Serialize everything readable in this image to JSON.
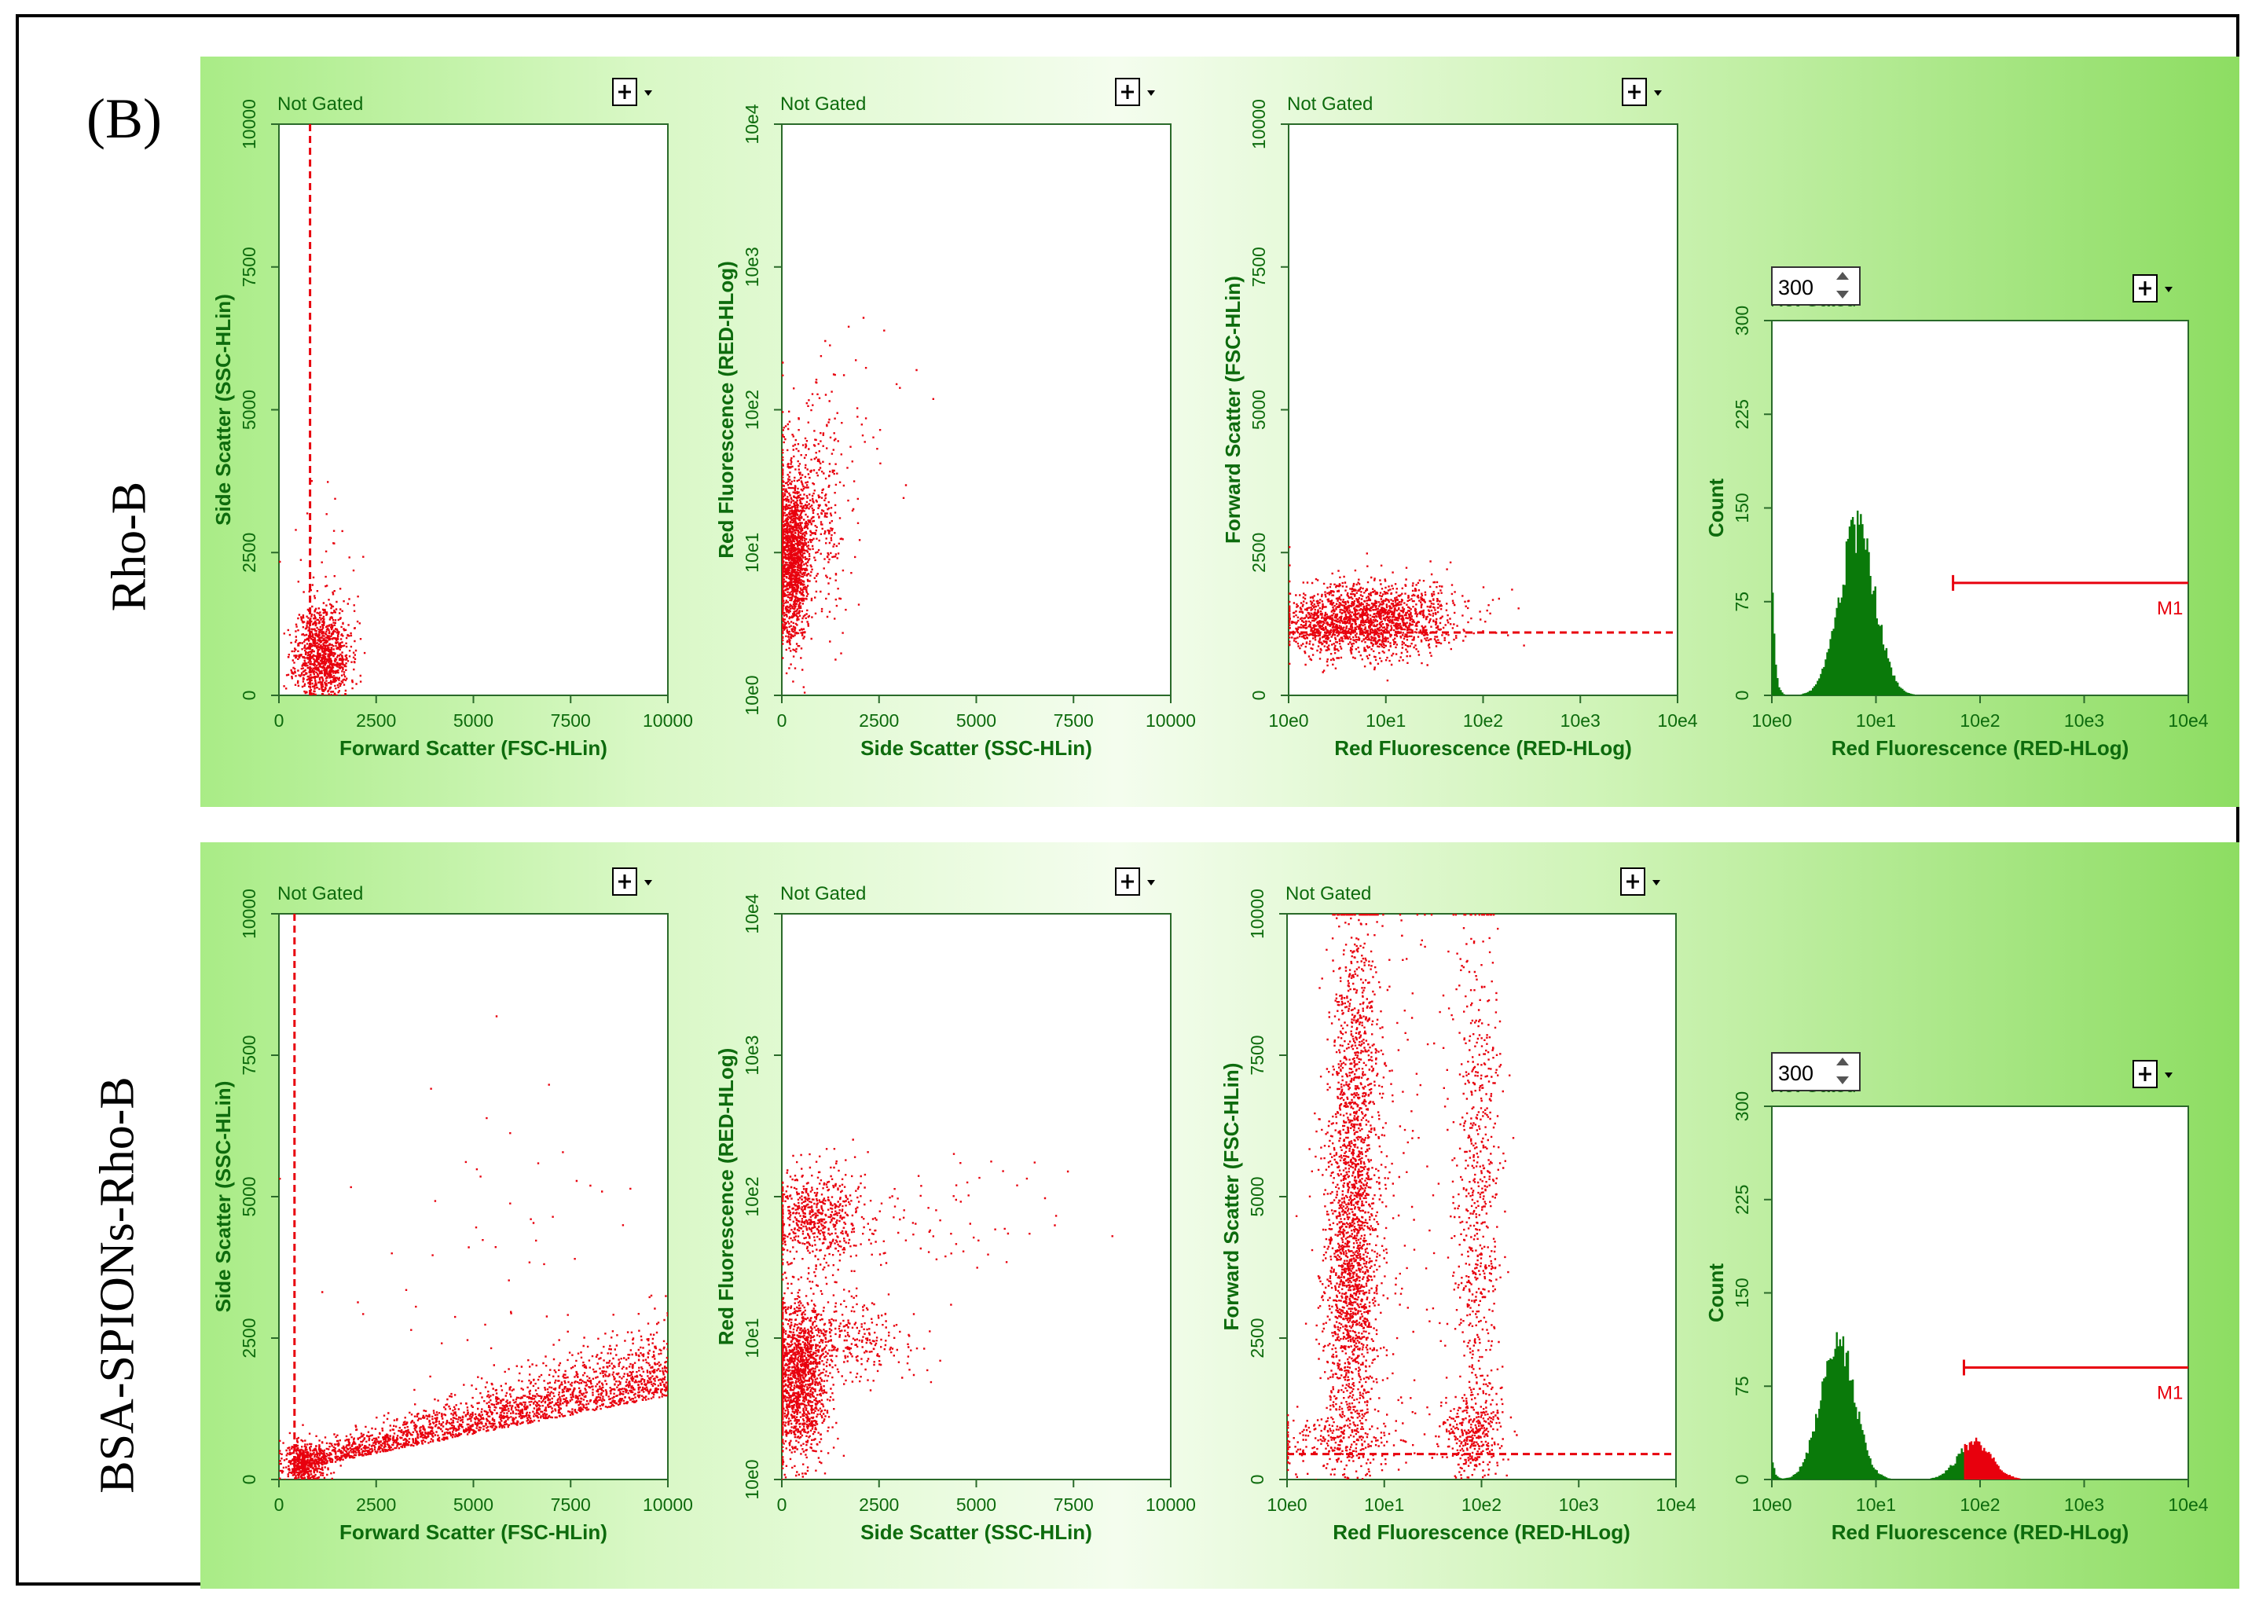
{
  "figure": {
    "panel_label": "(B)",
    "rows": [
      "Rho-B",
      "BSA-SPIONs-Rho-B"
    ]
  },
  "colors": {
    "dots": "#e8000d",
    "axis_text": "#0d6b0d",
    "hist_fill": "#0a7a0a",
    "hist_marker": "#e8000d",
    "band_start": "#a9ec86",
    "band_end": "#8ddd62"
  },
  "chart_data": [
    {
      "id": "r1p1",
      "type": "scatter",
      "title": "Not Gated",
      "menu_icon": "plus-icon",
      "xlabel": "Forward Scatter (FSC-HLin)",
      "ylabel": "Side Scatter (SSC-HLin)",
      "xscale": "linear",
      "yscale": "linear",
      "xlim": [
        0,
        10000
      ],
      "ylim": [
        0,
        10000
      ],
      "xticks": [
        "0",
        "2500",
        "5000",
        "7500",
        "10000"
      ],
      "xtick_values": [
        0,
        2500,
        5000,
        7500,
        10000
      ],
      "yticks": [
        "0",
        "2500",
        "5000",
        "7500",
        "10000"
      ],
      "ytick_values": [
        0,
        2500,
        5000,
        7500,
        10000
      ],
      "gate_vertical": 800,
      "clusters": [
        {
          "n": 1100,
          "cx": 1100,
          "cy": 700,
          "sx": 350,
          "sy": 450,
          "seed": 11
        },
        {
          "n": 40,
          "cx": 1500,
          "cy": 2000,
          "sx": 600,
          "sy": 900,
          "seed": 12
        }
      ]
    },
    {
      "id": "r1p2",
      "type": "scatter",
      "title": "Not Gated",
      "menu_icon": "plus-icon",
      "xlabel": "Side Scatter (SSC-HLin)",
      "ylabel": "Red Fluorescence (RED-HLog)",
      "xscale": "linear",
      "yscale": "log",
      "xlim": [
        0,
        10000
      ],
      "ylim": [
        1,
        10000
      ],
      "xticks": [
        "0",
        "2500",
        "5000",
        "7500",
        "10000"
      ],
      "xtick_values": [
        0,
        2500,
        5000,
        7500,
        10000
      ],
      "yticks": [
        "10e0",
        "10e1",
        "10e2",
        "10e3",
        "10e4"
      ],
      "ytick_values": [
        1,
        10,
        100,
        1000,
        10000
      ],
      "clusters": [
        {
          "n": 1400,
          "cx": 250,
          "cy": 0.95,
          "sx": 220,
          "sy": 0.3,
          "seed": 21
        },
        {
          "n": 450,
          "cx": 700,
          "cy": 1.25,
          "sx": 500,
          "sy": 0.35,
          "seed": 22
        },
        {
          "n": 50,
          "cx": 1800,
          "cy": 1.9,
          "sx": 900,
          "sy": 0.3,
          "seed": 23
        }
      ]
    },
    {
      "id": "r1p3",
      "type": "scatter",
      "title": "Not Gated",
      "menu_icon": "plus-icon",
      "xlabel": "Red Fluorescence (RED-HLog)",
      "ylabel": "Forward Scatter (FSC-HLin)",
      "xscale": "log",
      "yscale": "linear",
      "xlim": [
        1,
        10000
      ],
      "ylim": [
        0,
        10000
      ],
      "xticks": [
        "10e0",
        "10e1",
        "10e2",
        "10e3",
        "10e4"
      ],
      "xtick_values": [
        1,
        10,
        100,
        1000,
        10000
      ],
      "yticks": [
        "0",
        "2500",
        "5000",
        "7500",
        "10000"
      ],
      "ytick_values": [
        0,
        2500,
        5000,
        7500,
        10000
      ],
      "gate_horizontal": 1100,
      "clusters": [
        {
          "n": 1500,
          "cx": 0.85,
          "cy": 1350,
          "sx": 0.38,
          "sy": 320,
          "seed": 31
        },
        {
          "n": 300,
          "cx": 0.3,
          "cy": 1250,
          "sx": 0.2,
          "sy": 250,
          "seed": 32
        },
        {
          "n": 60,
          "cx": 1.6,
          "cy": 1400,
          "sx": 0.35,
          "sy": 300,
          "seed": 33
        }
      ]
    },
    {
      "id": "r1p4",
      "type": "histogram",
      "title": "Not Gated",
      "menu_icon": "plus-icon",
      "count_box": "300",
      "xlabel": "Red Fluorescence (RED-HLog)",
      "ylabel": "Count",
      "xscale": "log",
      "yscale": "linear",
      "xlim": [
        1,
        10000
      ],
      "ylim": [
        0,
        300
      ],
      "xticks": [
        "10e0",
        "10e1",
        "10e2",
        "10e3",
        "10e4"
      ],
      "xtick_values": [
        1,
        10,
        100,
        1000,
        10000
      ],
      "yticks": [
        "0",
        "75",
        "150",
        "225",
        "300"
      ],
      "ytick_values": [
        0,
        75,
        150,
        225,
        300
      ],
      "edge_peak": {
        "x": 1,
        "count": 120
      },
      "peaks": [
        {
          "center_decade": 0.82,
          "width_decade": 0.17,
          "height": 130
        }
      ],
      "marker": {
        "label": "M1",
        "start": 55,
        "end": 10000,
        "level": 90
      }
    },
    {
      "id": "r2p1",
      "type": "scatter",
      "title": "Not Gated",
      "menu_icon": "plus-icon",
      "xlabel": "Forward Scatter (FSC-HLin)",
      "ylabel": "Side Scatter (SSC-HLin)",
      "xscale": "linear",
      "yscale": "linear",
      "xlim": [
        0,
        10000
      ],
      "ylim": [
        0,
        10000
      ],
      "xticks": [
        "0",
        "2500",
        "5000",
        "7500",
        "10000"
      ],
      "xtick_values": [
        0,
        2500,
        5000,
        7500,
        10000
      ],
      "yticks": [
        "0",
        "2500",
        "5000",
        "7500",
        "10000"
      ],
      "ytick_values": [
        0,
        2500,
        5000,
        7500,
        10000
      ],
      "gate_vertical": 400,
      "clusters": [
        {
          "n": 2200,
          "trend": true,
          "x0": 400,
          "x1": 10000,
          "y0": 200,
          "y1": 1500,
          "spread": 450,
          "seed": 41
        },
        {
          "n": 500,
          "cx": 650,
          "cy": 250,
          "sx": 300,
          "sy": 250,
          "seed": 42
        },
        {
          "n": 60,
          "cx": 5000,
          "cy": 4000,
          "sx": 2500,
          "sy": 1800,
          "seed": 43
        }
      ]
    },
    {
      "id": "r2p2",
      "type": "scatter",
      "title": "Not Gated",
      "menu_icon": "plus-icon",
      "xlabel": "Side Scatter (SSC-HLin)",
      "ylabel": "Red Fluorescence (RED-HLog)",
      "xscale": "linear",
      "yscale": "log",
      "xlim": [
        0,
        10000
      ],
      "ylim": [
        1,
        10000
      ],
      "xticks": [
        "0",
        "2500",
        "5000",
        "7500",
        "10000"
      ],
      "xtick_values": [
        0,
        2500,
        5000,
        7500,
        10000
      ],
      "yticks": [
        "10e0",
        "10e1",
        "10e2",
        "10e3",
        "10e4"
      ],
      "ytick_values": [
        1,
        10,
        100,
        1000,
        10000
      ],
      "clusters": [
        {
          "n": 1500,
          "cx": 400,
          "cy": 0.7,
          "sx": 380,
          "sy": 0.28,
          "seed": 51
        },
        {
          "n": 350,
          "cx": 1500,
          "cy": 1.0,
          "sx": 900,
          "sy": 0.15,
          "seed": 52
        },
        {
          "n": 650,
          "cx": 900,
          "cy": 1.85,
          "sx": 700,
          "sy": 0.18,
          "seed": 53
        },
        {
          "n": 80,
          "cx": 3500,
          "cy": 1.9,
          "sx": 1800,
          "sy": 0.25,
          "seed": 54
        }
      ]
    },
    {
      "id": "r2p3",
      "type": "scatter",
      "title": "Not Gated",
      "menu_icon": "plus-icon",
      "xlabel": "Red Fluorescence (RED-HLog)",
      "ylabel": "Forward Scatter (FSC-HLin)",
      "xscale": "log",
      "yscale": "linear",
      "xlim": [
        1,
        10000
      ],
      "ylim": [
        0,
        10000
      ],
      "xticks": [
        "10e0",
        "10e1",
        "10e2",
        "10e3",
        "10e4"
      ],
      "xtick_values": [
        1,
        10,
        100,
        1000,
        10000
      ],
      "yticks": [
        "0",
        "2500",
        "5000",
        "7500",
        "10000"
      ],
      "ytick_values": [
        0,
        2500,
        5000,
        7500,
        10000
      ],
      "gate_horizontal": 450,
      "clusters": [
        {
          "n": 1700,
          "cx": 0.65,
          "cy": 3800,
          "sx": 0.14,
          "sy": 1800,
          "seed": 61
        },
        {
          "n": 600,
          "cx": 0.7,
          "cy": 7500,
          "sx": 0.12,
          "sy": 1600,
          "seed": 62
        },
        {
          "n": 700,
          "cx": 1.95,
          "cy": 4500,
          "sx": 0.12,
          "sy": 2800,
          "seed": 63
        },
        {
          "n": 300,
          "cx": 1.9,
          "cy": 800,
          "sx": 0.15,
          "sy": 350,
          "seed": 64
        },
        {
          "n": 250,
          "cx": 0.5,
          "cy": 700,
          "sx": 0.35,
          "sy": 300,
          "seed": 65
        },
        {
          "n": 150,
          "cx": 1.2,
          "cy": 5000,
          "sx": 0.3,
          "sy": 3000,
          "seed": 66
        }
      ]
    },
    {
      "id": "r2p4",
      "type": "histogram",
      "title": "Not Gated",
      "menu_icon": "plus-icon",
      "count_box": "300",
      "xlabel": "Red Fluorescence (RED-HLog)",
      "ylabel": "Count",
      "xscale": "log",
      "yscale": "linear",
      "xlim": [
        1,
        10000
      ],
      "ylim": [
        0,
        300
      ],
      "xticks": [
        "10e0",
        "10e1",
        "10e2",
        "10e3",
        "10e4"
      ],
      "xtick_values": [
        1,
        10,
        100,
        1000,
        10000
      ],
      "yticks": [
        "0",
        "75",
        "150",
        "225",
        "300"
      ],
      "ytick_values": [
        0,
        75,
        150,
        225,
        300
      ],
      "edge_peak": {
        "x": 1,
        "count": 20
      },
      "peaks": [
        {
          "center_decade": 0.63,
          "width_decade": 0.16,
          "height": 115
        },
        {
          "center_decade": 1.95,
          "width_decade": 0.16,
          "height": 30
        }
      ],
      "marker": {
        "label": "M1",
        "start": 70,
        "end": 10000,
        "level": 90
      }
    }
  ]
}
